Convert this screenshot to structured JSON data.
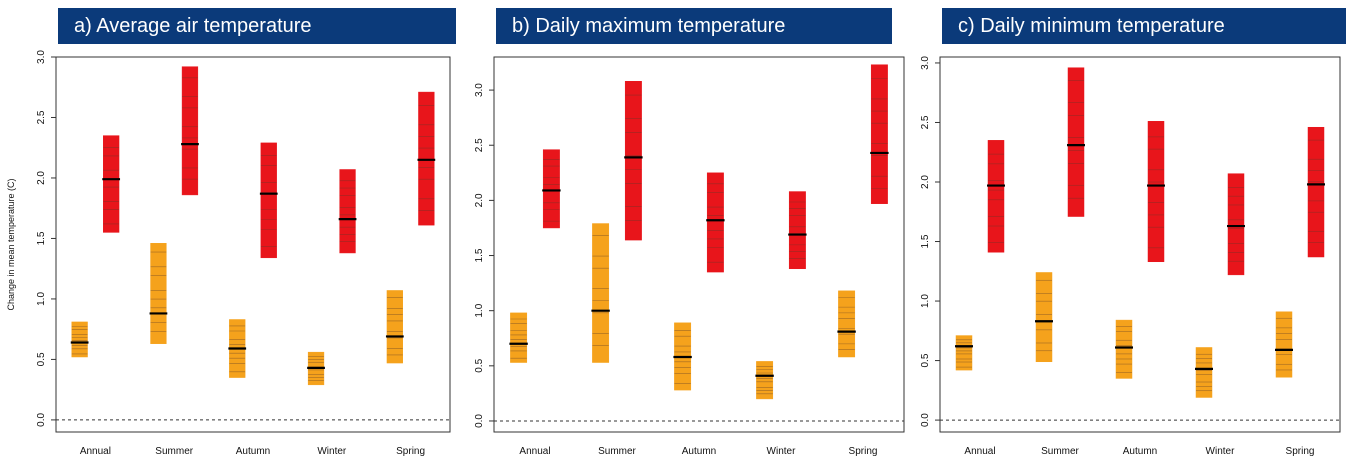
{
  "chart_data": [
    {
      "type": "bar",
      "title": "a) Average air temperature",
      "ylabel": "Change in mean temperature (C)",
      "xlabel": "",
      "categories": [
        "Annual",
        "Summer",
        "Autumn",
        "Winter",
        "Spring"
      ],
      "ylim": [
        -0.1,
        3.0
      ],
      "yticks": [
        0.0,
        0.5,
        1.0,
        1.5,
        2.0,
        2.5,
        3.0
      ],
      "reference_line": 0,
      "series": [
        {
          "color": "#f5a21c",
          "ranges": [
            [
              0.52,
              0.81
            ],
            [
              0.63,
              1.46
            ],
            [
              0.35,
              0.83
            ],
            [
              0.29,
              0.56
            ],
            [
              0.47,
              1.07
            ]
          ],
          "medians": [
            0.64,
            0.88,
            0.59,
            0.43,
            0.69
          ]
        },
        {
          "color": "#e8151b",
          "ranges": [
            [
              1.55,
              2.35
            ],
            [
              1.86,
              2.92
            ],
            [
              1.34,
              2.29
            ],
            [
              1.38,
              2.07
            ],
            [
              1.61,
              2.71
            ]
          ],
          "medians": [
            1.99,
            2.28,
            1.87,
            1.66,
            2.15
          ]
        }
      ]
    },
    {
      "type": "bar",
      "title": "b) Daily maximum temperature",
      "ylabel": "",
      "xlabel": "",
      "categories": [
        "Annual",
        "Summer",
        "Autumn",
        "Winter",
        "Spring"
      ],
      "ylim": [
        -0.1,
        3.3
      ],
      "yticks": [
        0.0,
        0.5,
        1.0,
        1.5,
        2.0,
        2.5,
        3.0
      ],
      "reference_line": 0,
      "series": [
        {
          "color": "#f5a21c",
          "ranges": [
            [
              0.53,
              0.98
            ],
            [
              0.53,
              1.79
            ],
            [
              0.28,
              0.89
            ],
            [
              0.2,
              0.54
            ],
            [
              0.58,
              1.18
            ]
          ],
          "medians": [
            0.7,
            1.0,
            0.58,
            0.41,
            0.81
          ]
        },
        {
          "color": "#e8151b",
          "ranges": [
            [
              1.75,
              2.46
            ],
            [
              1.64,
              3.08
            ],
            [
              1.35,
              2.25
            ],
            [
              1.38,
              2.08
            ],
            [
              1.97,
              3.23
            ]
          ],
          "medians": [
            2.09,
            2.39,
            1.82,
            1.69,
            2.43
          ]
        }
      ]
    },
    {
      "type": "bar",
      "title": "c) Daily minimum temperature",
      "ylabel": "",
      "xlabel": "",
      "categories": [
        "Annual",
        "Summer",
        "Autumn",
        "Winter",
        "Spring"
      ],
      "ylim": [
        -0.1,
        3.05
      ],
      "yticks": [
        0.0,
        0.5,
        1.0,
        1.5,
        2.0,
        2.5,
        3.0
      ],
      "reference_line": 0,
      "series": [
        {
          "color": "#f5a21c",
          "ranges": [
            [
              0.42,
              0.71
            ],
            [
              0.49,
              1.24
            ],
            [
              0.35,
              0.84
            ],
            [
              0.19,
              0.61
            ],
            [
              0.36,
              0.91
            ]
          ],
          "medians": [
            0.62,
            0.83,
            0.61,
            0.43,
            0.59
          ]
        },
        {
          "color": "#e8151b",
          "ranges": [
            [
              1.41,
              2.35
            ],
            [
              1.71,
              2.96
            ],
            [
              1.33,
              2.51
            ],
            [
              1.22,
              2.07
            ],
            [
              1.37,
              2.46
            ]
          ],
          "medians": [
            1.97,
            2.31,
            1.97,
            1.63,
            1.98
          ]
        }
      ]
    }
  ]
}
